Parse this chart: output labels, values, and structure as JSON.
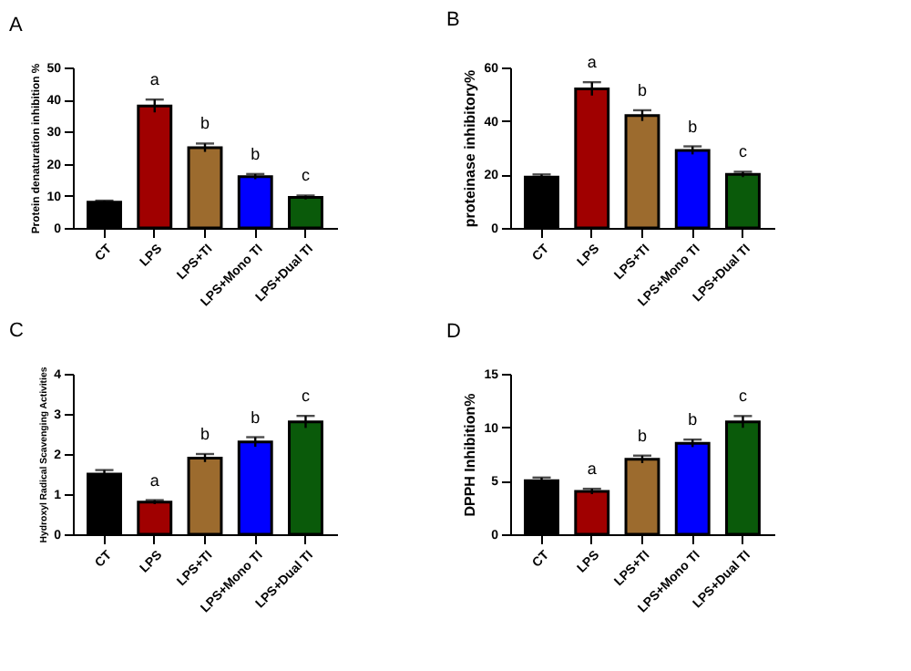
{
  "chart_data": [
    {
      "type": "bar",
      "title": "A",
      "ylabel": "Protein denaturation inhibition %",
      "categories": [
        "CT",
        "LPS",
        "LPS+TI",
        "LPS+Mono TI",
        "LPS+Dual TI"
      ],
      "values": [
        8,
        38,
        25,
        16,
        9.5
      ],
      "errors": [
        0.5,
        2,
        1.3,
        0.8,
        0.6
      ],
      "colors": [
        "#000000",
        "#a00000",
        "#9c6b2e",
        "#0000ff",
        "#0a5a0a"
      ],
      "ylim": [
        0,
        50
      ],
      "yticks": [
        0,
        10,
        20,
        30,
        40,
        50
      ],
      "grid": false,
      "legend": false,
      "annotations": [
        {
          "text": "a",
          "x": "LPS",
          "y": 40
        },
        {
          "text": "b",
          "x": "LPS+TI",
          "y": 26.3
        },
        {
          "text": "b",
          "x": "LPS+Mono TI",
          "y": 16.8
        },
        {
          "text": "c",
          "x": "LPS+Dual TI",
          "y": 10.1
        }
      ]
    },
    {
      "type": "bar",
      "title": "B",
      "ylabel": "proteinase inhibitory%",
      "categories": [
        "CT",
        "LPS",
        "LPS+TI",
        "LPS+Mono TI",
        "LPS+Dual TI"
      ],
      "values": [
        19,
        52,
        42,
        29,
        20
      ],
      "errors": [
        1,
        2.5,
        2,
        1.5,
        1
      ],
      "colors": [
        "#000000",
        "#a00000",
        "#9c6b2e",
        "#0000ff",
        "#0a5a0a"
      ],
      "ylim": [
        0,
        60
      ],
      "yticks": [
        0,
        20,
        40,
        60
      ],
      "grid": false,
      "legend": false,
      "annotations": [
        {
          "text": "a",
          "x": "LPS",
          "y": 54.5
        },
        {
          "text": "b",
          "x": "LPS+TI",
          "y": 44
        },
        {
          "text": "b",
          "x": "LPS+Mono TI",
          "y": 30.5
        },
        {
          "text": "c",
          "x": "LPS+Dual TI",
          "y": 21
        }
      ]
    },
    {
      "type": "bar",
      "title": "C",
      "ylabel": "Hydroxyl Radical Scavenging Activities",
      "categories": [
        "CT",
        "LPS",
        "LPS+TI",
        "LPS+Mono TI",
        "LPS+Dual TI"
      ],
      "values": [
        1.5,
        0.8,
        1.9,
        2.3,
        2.8
      ],
      "errors": [
        0.1,
        0.05,
        0.1,
        0.12,
        0.15
      ],
      "colors": [
        "#000000",
        "#a00000",
        "#9c6b2e",
        "#0000ff",
        "#0a5a0a"
      ],
      "ylim": [
        0,
        4
      ],
      "yticks": [
        0,
        1,
        2,
        3,
        4
      ],
      "grid": false,
      "legend": false,
      "annotations": [
        {
          "text": "a",
          "x": "LPS",
          "y": 0.85
        },
        {
          "text": "b",
          "x": "LPS+TI",
          "y": 2.0
        },
        {
          "text": "b",
          "x": "LPS+Mono TI",
          "y": 2.42
        },
        {
          "text": "c",
          "x": "LPS+Dual TI",
          "y": 2.95
        }
      ]
    },
    {
      "type": "bar",
      "title": "D",
      "ylabel": "DPPH Inhibition%",
      "categories": [
        "CT",
        "LPS",
        "LPS+TI",
        "LPS+Mono TI",
        "LPS+Dual TI"
      ],
      "values": [
        5,
        4,
        7,
        8.5,
        10.5
      ],
      "errors": [
        0.3,
        0.25,
        0.35,
        0.35,
        0.55
      ],
      "colors": [
        "#000000",
        "#a00000",
        "#9c6b2e",
        "#0000ff",
        "#0a5a0a"
      ],
      "ylim": [
        0,
        15
      ],
      "yticks": [
        0,
        5,
        10,
        15
      ],
      "grid": false,
      "legend": false,
      "annotations": [
        {
          "text": "a",
          "x": "LPS",
          "y": 4.25
        },
        {
          "text": "b",
          "x": "LPS+TI",
          "y": 7.35
        },
        {
          "text": "b",
          "x": "LPS+Mono TI",
          "y": 8.85
        },
        {
          "text": "c",
          "x": "LPS+Dual TI",
          "y": 11.05
        }
      ]
    }
  ]
}
